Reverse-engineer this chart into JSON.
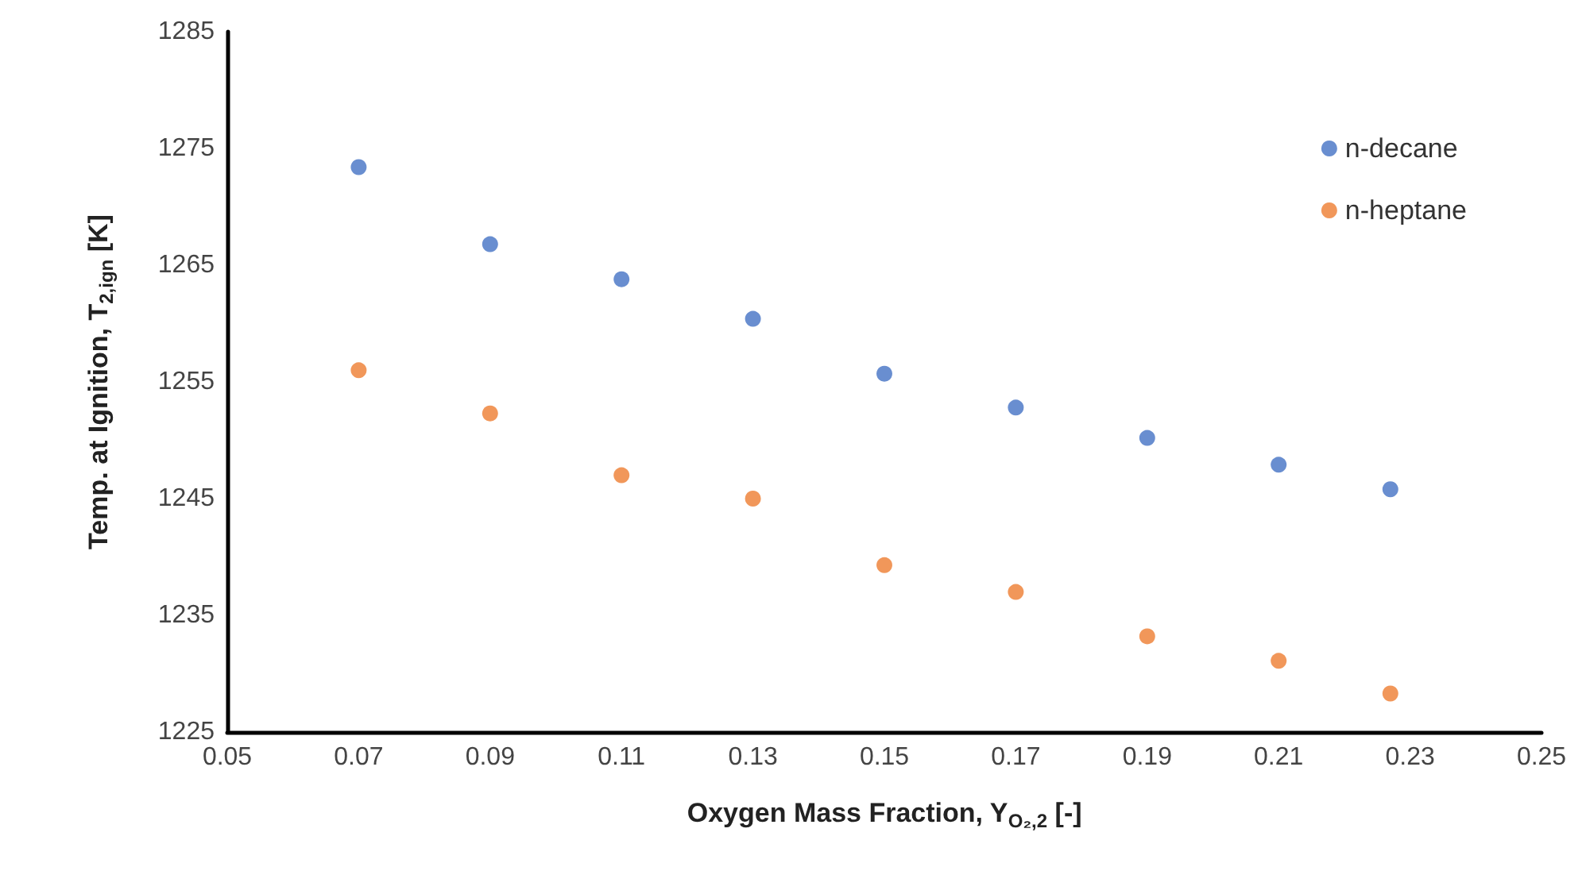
{
  "chart_data": {
    "type": "scatter",
    "xlabel": "Oxygen Mass Fraction, Y$_{O₂,2}$ [-]",
    "ylabel": "Temp. at Ignition, T$_{2,ign}$ [K]",
    "x": [
      0.07,
      0.09,
      0.11,
      0.13,
      0.15,
      0.17,
      0.19,
      0.21,
      0.227
    ],
    "series": [
      {
        "name": "n-decane",
        "color": "#4472c4",
        "values": [
          1273.4,
          1266.8,
          1263.8,
          1260.4,
          1255.7,
          1252.8,
          1250.2,
          1247.9,
          1245.8
        ]
      },
      {
        "name": "n-heptane",
        "color": "#ed7d31",
        "values": [
          1256.0,
          1252.3,
          1247.0,
          1245.0,
          1239.3,
          1237.0,
          1233.2,
          1231.1,
          1228.3
        ]
      }
    ],
    "xlim": [
      0.05,
      0.25
    ],
    "xticks": [
      {
        "value": 0.05,
        "label": "0.05"
      },
      {
        "value": 0.07,
        "label": "0.07"
      },
      {
        "value": 0.09,
        "label": "0.09"
      },
      {
        "value": 0.11,
        "label": "0.11"
      },
      {
        "value": 0.13,
        "label": "0.13"
      },
      {
        "value": 0.15,
        "label": "0.15"
      },
      {
        "value": 0.17,
        "label": "0.17"
      },
      {
        "value": 0.19,
        "label": "0.19"
      },
      {
        "value": 0.21,
        "label": "0.21"
      },
      {
        "value": 0.23,
        "label": "0.23"
      },
      {
        "value": 0.25,
        "label": "0.25"
      }
    ],
    "ylim": [
      1225,
      1285
    ],
    "yticks": [
      1225,
      1235,
      1245,
      1255,
      1265,
      1275,
      1285
    ],
    "grid": false,
    "legend": "top right",
    "marker": "circle"
  }
}
